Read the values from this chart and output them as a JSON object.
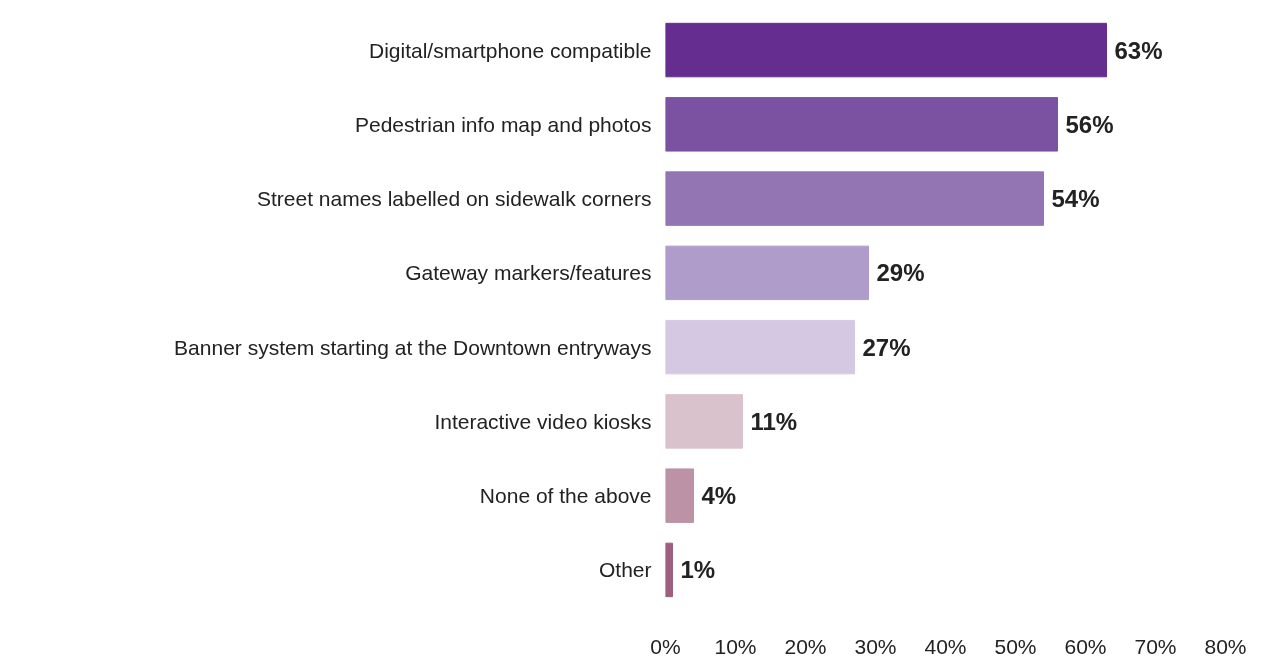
{
  "chart_data": {
    "type": "bar",
    "orientation": "horizontal",
    "categories": [
      "Digital/smartphone compatible",
      "Pedestrian info map and photos",
      "Street names labelled on sidewalk corners",
      "Gateway markers/features",
      "Banner system starting at the Downtown entryways",
      "Interactive video kiosks",
      "None of the above",
      "Other"
    ],
    "values": [
      63,
      56,
      54,
      29,
      27,
      11,
      4,
      1
    ],
    "colors": [
      "#652d90",
      "#7b52a1",
      "#9475b4",
      "#b09ccb",
      "#d4c8e3",
      "#d9c2cc",
      "#bc93a6",
      "#9c5f7f"
    ],
    "value_labels": [
      "63%",
      "56%",
      "54%",
      "29%",
      "27%",
      "11%",
      "4%",
      "1%"
    ],
    "xlim": [
      0,
      80
    ],
    "xticks": [
      {
        "value": 0,
        "label": "0%"
      },
      {
        "value": 10,
        "label": "10%"
      },
      {
        "value": 20,
        "label": "20%"
      },
      {
        "value": 30,
        "label": "30%"
      },
      {
        "value": 40,
        "label": "40%"
      },
      {
        "value": 50,
        "label": "50%"
      },
      {
        "value": 60,
        "label": "60%"
      },
      {
        "value": 70,
        "label": "70%"
      },
      {
        "value": 80,
        "label": "80%"
      }
    ],
    "grid": false
  }
}
